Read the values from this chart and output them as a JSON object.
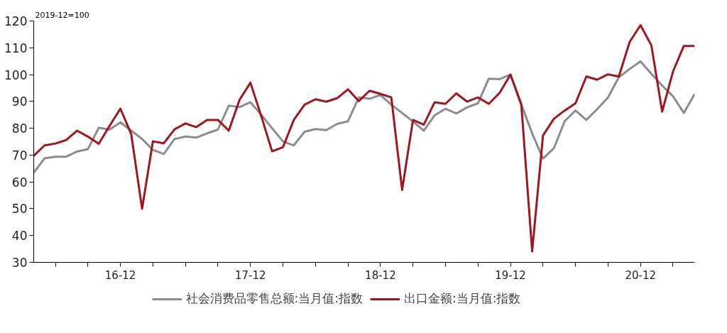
{
  "chart_data": {
    "type": "line",
    "annotations": [
      "2019-12=100"
    ],
    "x": [
      "2016-04",
      "2016-05",
      "2016-06",
      "2016-07",
      "2016-08",
      "2016-09",
      "2016-10",
      "2016-11",
      "2016-12",
      "2017-01",
      "2017-02",
      "2017-03",
      "2017-04",
      "2017-05",
      "2017-06",
      "2017-07",
      "2017-08",
      "2017-09",
      "2017-10",
      "2017-11",
      "2017-12",
      "2018-01",
      "2018-02",
      "2018-03",
      "2018-04",
      "2018-05",
      "2018-06",
      "2018-07",
      "2018-08",
      "2018-09",
      "2018-10",
      "2018-11",
      "2018-12",
      "2019-01",
      "2019-02",
      "2019-03",
      "2019-04",
      "2019-05",
      "2019-06",
      "2019-07",
      "2019-08",
      "2019-09",
      "2019-10",
      "2019-11",
      "2019-12",
      "2020-01",
      "2020-02",
      "2020-03",
      "2020-04",
      "2020-05",
      "2020-06",
      "2020-07",
      "2020-08",
      "2020-09",
      "2020-10",
      "2020-11",
      "2020-12",
      "2021-01",
      "2021-02",
      "2021-03",
      "2021-04",
      "2021-05"
    ],
    "series": [
      {
        "name": "社会消费品零售总额:当月值:指数",
        "color": "#8c8c8c",
        "values": [
          63.4,
          68.8,
          69.4,
          69.4,
          71.3,
          72.2,
          80.2,
          79.5,
          82.2,
          79.1,
          76.0,
          71.9,
          70.4,
          76.0,
          76.9,
          76.5,
          78.1,
          79.5,
          88.4,
          87.9,
          89.7,
          85.0,
          80.0,
          75.1,
          73.6,
          78.7,
          79.7,
          79.3,
          81.6,
          82.6,
          91.5,
          91.0,
          92.4,
          88.8,
          85.7,
          82.5,
          79.1,
          84.8,
          87.3,
          85.5,
          87.8,
          89.3,
          98.5,
          98.3,
          100,
          88.8,
          78.1,
          68.7,
          72.5,
          82.6,
          86.6,
          83.1,
          87.1,
          91.5,
          99.0,
          102.1,
          104.9,
          100.3,
          95.9,
          91.9,
          85.7,
          92.8
        ]
      },
      {
        "name": "出口金额:当月值:指数",
        "color": "#a0161c",
        "values": [
          69.7,
          73.6,
          74.3,
          75.6,
          79.1,
          76.9,
          74.2,
          80.9,
          87.3,
          77.8,
          50.0,
          75.1,
          74.4,
          79.6,
          81.8,
          80.4,
          83.1,
          83.1,
          79.1,
          90.6,
          97.0,
          84.5,
          71.4,
          72.9,
          83.1,
          88.8,
          90.8,
          89.9,
          91.2,
          94.5,
          90.1,
          94.0,
          92.8,
          91.5,
          57.0,
          83.1,
          81.3,
          89.7,
          89.1,
          93.0,
          89.9,
          91.5,
          89.1,
          93.2,
          100,
          88.8,
          34.1,
          77.3,
          83.5,
          86.6,
          89.3,
          99.3,
          98.1,
          100.1,
          99.3,
          112.2,
          118.4,
          110.9,
          86.2,
          101.2,
          110.7,
          110.7
        ]
      }
    ],
    "xlim": [
      "2016-04",
      "2021-05"
    ],
    "xticks": [
      {
        "value": "2016-06",
        "label": null
      },
      {
        "value": "2016-09",
        "label": null
      },
      {
        "value": "2016-12",
        "label": "16-12"
      },
      {
        "value": "2017-03",
        "label": null
      },
      {
        "value": "2017-06",
        "label": null
      },
      {
        "value": "2017-09",
        "label": null
      },
      {
        "value": "2017-12",
        "label": "17-12"
      },
      {
        "value": "2018-03",
        "label": null
      },
      {
        "value": "2018-06",
        "label": null
      },
      {
        "value": "2018-09",
        "label": null
      },
      {
        "value": "2018-12",
        "label": "18-12"
      },
      {
        "value": "2019-03",
        "label": null
      },
      {
        "value": "2019-06",
        "label": null
      },
      {
        "value": "2019-09",
        "label": null
      },
      {
        "value": "2019-12",
        "label": "19-12"
      },
      {
        "value": "2020-03",
        "label": null
      },
      {
        "value": "2020-06",
        "label": null
      },
      {
        "value": "2020-09",
        "label": null
      },
      {
        "value": "2020-12",
        "label": "20-12"
      },
      {
        "value": "2021-03",
        "label": null
      }
    ],
    "ylim": [
      30,
      120
    ],
    "yticks": [
      30,
      40,
      50,
      60,
      70,
      80,
      90,
      100,
      110,
      120
    ],
    "grid": false,
    "legend": "bottom",
    "marker": "none",
    "line_style": "solid"
  }
}
